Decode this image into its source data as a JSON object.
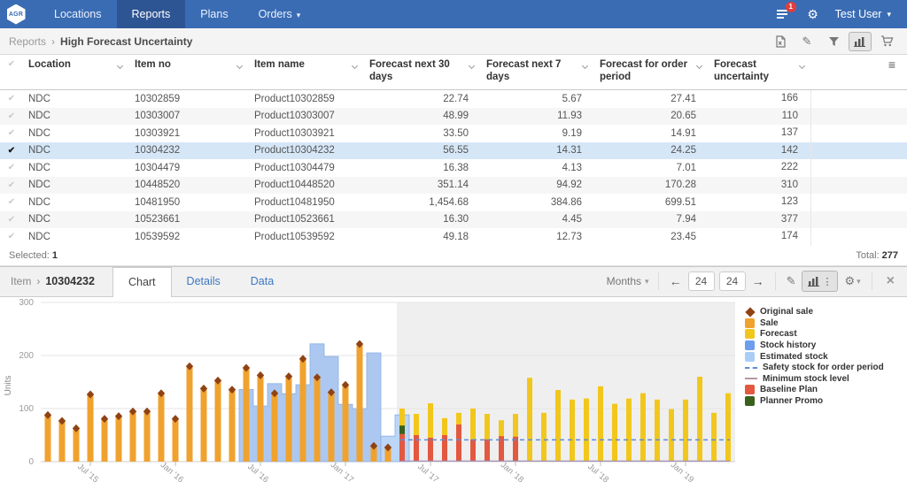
{
  "navbar": {
    "brand": "AGR",
    "items": [
      {
        "label": "Locations",
        "active": false,
        "caret": false
      },
      {
        "label": "Reports",
        "active": true,
        "caret": false
      },
      {
        "label": "Plans",
        "active": false,
        "caret": false
      },
      {
        "label": "Orders",
        "active": false,
        "caret": true
      }
    ],
    "notification_count": "1",
    "user": "Test User"
  },
  "breadcrumb": {
    "section": "Reports",
    "title": "High Forecast Uncertainty"
  },
  "icons": {
    "breadcrumb_separator": "›",
    "caret_down": "▾",
    "gear": "⚙",
    "pencil": "✎",
    "check": "✔",
    "hamburger": "≡",
    "arrow_left": "←",
    "arrow_right": "→",
    "close": "×",
    "dots_vertical": "⋮"
  },
  "table": {
    "columns": [
      {
        "label": "Location",
        "sortable": true
      },
      {
        "label": "Item no",
        "sortable": true
      },
      {
        "label": "Item name",
        "sortable": true
      },
      {
        "label": "Forecast next 30 days",
        "sortable": true
      },
      {
        "label": "Forecast next 7 days",
        "sortable": true
      },
      {
        "label": "Forecast for order period",
        "sortable": true
      },
      {
        "label": "Forecast uncertainty",
        "sortable": true
      }
    ],
    "rows": [
      [
        "NDC",
        "10302859",
        "Product10302859",
        "22.74",
        "5.67",
        "27.41",
        "166"
      ],
      [
        "NDC",
        "10303007",
        "Product10303007",
        "48.99",
        "11.93",
        "20.65",
        "110"
      ],
      [
        "NDC",
        "10303921",
        "Product10303921",
        "33.50",
        "9.19",
        "14.91",
        "137"
      ],
      [
        "NDC",
        "10304232",
        "Product10304232",
        "56.55",
        "14.31",
        "24.25",
        "142"
      ],
      [
        "NDC",
        "10304479",
        "Product10304479",
        "16.38",
        "4.13",
        "7.01",
        "222"
      ],
      [
        "NDC",
        "10448520",
        "Product10448520",
        "351.14",
        "94.92",
        "170.28",
        "310"
      ],
      [
        "NDC",
        "10481950",
        "Product10481950",
        "1,454.68",
        "384.86",
        "699.51",
        "123"
      ],
      [
        "NDC",
        "10523661",
        "Product10523661",
        "16.30",
        "4.45",
        "7.94",
        "377"
      ],
      [
        "NDC",
        "10539592",
        "Product10539592",
        "49.18",
        "12.73",
        "23.45",
        "174"
      ]
    ],
    "selected_row_index": 3,
    "status": {
      "selected_label": "Selected:",
      "selected_count": "1",
      "total_label": "Total:",
      "total_count": "277"
    }
  },
  "panel": {
    "item_label": "Item",
    "item_no": "10304232",
    "tabs": [
      "Chart",
      "Details",
      "Data"
    ],
    "active_tab": "Chart",
    "months_label": "Months",
    "back_value": "24",
    "forward_value": "24"
  },
  "chart_data": {
    "type": "bar",
    "ylabel": "Units",
    "ylim": [
      0,
      300
    ],
    "yticks": [
      0,
      100,
      200,
      300
    ],
    "grid": true,
    "months_total": 49,
    "forecast_region_start_month": 25,
    "x_tick_months": [
      3,
      9,
      15,
      21,
      27,
      33,
      39,
      45
    ],
    "x_tick_labels": [
      "Jul '15",
      "Jan '16",
      "Jul '16",
      "Jan '17",
      "Jul '17",
      "Jan '18",
      "Jul '18",
      "Jan '19"
    ],
    "series": [
      {
        "name": "Stock history",
        "type": "step-area",
        "color": "#a9c6f0",
        "edge": "#84abe4",
        "start_month": 14,
        "values": [
          136,
          105,
          147,
          128,
          145,
          222,
          198,
          108,
          100,
          205
        ]
      },
      {
        "name": "Estimated stock",
        "type": "step-area",
        "color": "#b9d4f8",
        "edge": "#84abe4",
        "start_month": 24,
        "values": [
          48,
          88
        ]
      },
      {
        "name": "Sale",
        "type": "bar",
        "color": "#f0a22e",
        "start_month": 0,
        "values": [
          86,
          75,
          61,
          125,
          79,
          84,
          93,
          93,
          127,
          79,
          178,
          136,
          151,
          134,
          175,
          161,
          127,
          159,
          192,
          157,
          129,
          143,
          220,
          28,
          25
        ]
      },
      {
        "name": "Original sale",
        "type": "point-diamond",
        "color": "#8f4315",
        "follows": "Sale"
      },
      {
        "name": "Forecast",
        "type": "bar",
        "color": "#f2c71d",
        "start_month": 25,
        "values": [
          100,
          90,
          110,
          82,
          92,
          100,
          90,
          78,
          90,
          158,
          92,
          135,
          117,
          119,
          142,
          109,
          119,
          129,
          117,
          99,
          117,
          160,
          92,
          129
        ]
      },
      {
        "name": "Baseline Plan",
        "type": "bar-segment",
        "color": "#e25840",
        "start_month": 25,
        "segments": [
          [
            0,
            52
          ],
          [
            0,
            50
          ],
          [
            0,
            45
          ],
          [
            0,
            50
          ],
          [
            0,
            70
          ],
          [
            0,
            42
          ],
          [
            0,
            42
          ],
          [
            0,
            48
          ],
          [
            0,
            47
          ]
        ]
      },
      {
        "name": "Planner Promo",
        "type": "bar-segment",
        "color": "#37611d",
        "start_month": 25,
        "segments": [
          [
            52,
            68
          ]
        ]
      },
      {
        "name": "Safety stock for order period",
        "type": "dashed-line",
        "color": "#5b8dd9",
        "y": 41,
        "start_month": 25,
        "end_month": 49
      },
      {
        "name": "Minimum stock level",
        "type": "line",
        "color": "#a391b6",
        "y": 1,
        "start_month": 25,
        "end_month": 49
      }
    ],
    "legend_position": "right",
    "legend": [
      {
        "name": "Original sale",
        "shape": "diamond",
        "color": "#8f4315"
      },
      {
        "name": "Sale",
        "shape": "square",
        "color": "#f0a22e"
      },
      {
        "name": "Forecast",
        "shape": "square",
        "color": "#f2c71d"
      },
      {
        "name": "Stock history",
        "shape": "square",
        "color": "#6d9eeb"
      },
      {
        "name": "Estimated stock",
        "shape": "square",
        "color": "#a9cdf5"
      },
      {
        "name": "Safety stock for order period",
        "shape": "dash",
        "color": "#5b8dd9"
      },
      {
        "name": "Minimum stock level",
        "shape": "line",
        "color": "#b5989f"
      },
      {
        "name": "Baseline Plan",
        "shape": "square",
        "color": "#e25840"
      },
      {
        "name": "Planner Promo",
        "shape": "square",
        "color": "#37611d"
      }
    ]
  }
}
